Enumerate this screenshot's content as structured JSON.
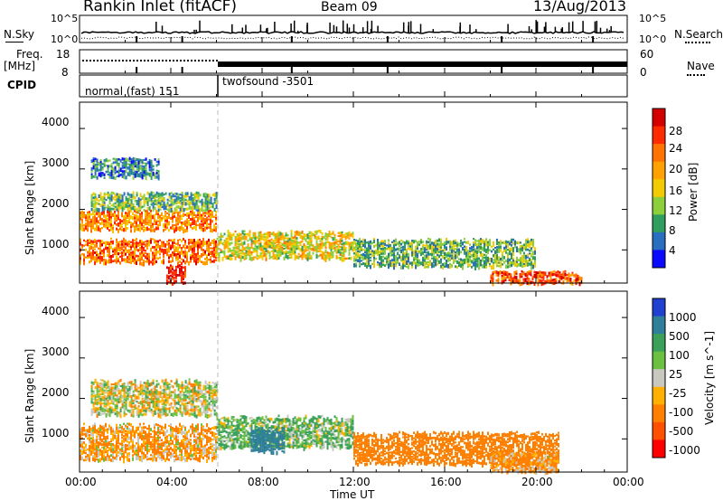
{
  "header": {
    "title": "Rankin Inlet (fitACF)",
    "beam": "Beam 09",
    "date": "13/Aug/2013"
  },
  "status_panels": {
    "nsky_label": "N.Sky",
    "nsearch_label": "N.Search",
    "nsky_ticks": [
      "10^5",
      "10^0"
    ],
    "nsearch_ticks": [
      "10^5",
      "10^0"
    ],
    "freq_label_line1": "Freq.",
    "freq_label_line2": "[MHz]",
    "freq_ticks": [
      "18",
      "8"
    ],
    "nave_label": "Nave",
    "nave_ticks": [
      "60",
      "0"
    ],
    "cpid_label": "CPID",
    "cpid_segments": [
      {
        "name": "normal (fast) 151",
        "start_hour": 0,
        "end_hour": 6
      },
      {
        "name": "twofsound -3501",
        "start_hour": 6,
        "end_hour": 24
      }
    ]
  },
  "axes": {
    "ylabel": "Slant Range [km]",
    "yticks": [
      "4000",
      "3000",
      "2000",
      "1000"
    ],
    "xticks": [
      "00:00",
      "04:00",
      "08:00",
      "12:00",
      "16:00",
      "20:00",
      "00:00"
    ],
    "xlabel": "Time UT"
  },
  "colorbars": {
    "power_label": "Power [dB]",
    "power_ticks": [
      "28",
      "24",
      "20",
      "16",
      "12",
      "8",
      "4"
    ],
    "power_colors": [
      "#d40000",
      "#ff2a00",
      "#ff7300",
      "#ffa100",
      "#f2cb00",
      "#8ccf3a",
      "#2f9e5e",
      "#2a6fbf",
      "#0a0aff"
    ],
    "velocity_label": "Velocity [m s^-1]",
    "velocity_ticks": [
      "1000",
      "500",
      "100",
      "25",
      "-25",
      "-100",
      "-500",
      "-1000"
    ],
    "velocity_colors": [
      "#2040d0",
      "#2f7f9a",
      "#3aa05a",
      "#6cc040",
      "#c8c8c0",
      "#ffb000",
      "#ff8000",
      "#ff5000",
      "#ff0000"
    ]
  },
  "chart_data": [
    {
      "type": "heatmap",
      "title": "Power",
      "xlabel": "Time UT",
      "ylabel": "Slant Range [km]",
      "xlim": [
        0,
        24
      ],
      "ylim": [
        180,
        4650
      ],
      "colorbar": "Power [dB]",
      "colorbar_range": [
        0,
        32
      ],
      "regions": [
        {
          "t0": 0.0,
          "t1": 6.0,
          "r0": 1500,
          "r1": 2000,
          "value": 22
        },
        {
          "t0": 0.5,
          "t1": 6.0,
          "r0": 2000,
          "r1": 2450,
          "value": 10
        },
        {
          "t0": 0.0,
          "t1": 6.0,
          "r0": 700,
          "r1": 1300,
          "value": 24
        },
        {
          "t0": 3.8,
          "t1": 4.6,
          "r0": 200,
          "r1": 650,
          "value": 30
        },
        {
          "t0": 6.0,
          "t1": 12.0,
          "r0": 800,
          "r1": 1500,
          "value": 16
        },
        {
          "t0": 12.0,
          "t1": 20.0,
          "r0": 600,
          "r1": 1300,
          "value": 10
        },
        {
          "t0": 18.0,
          "t1": 22.0,
          "r0": 200,
          "r1": 500,
          "value": 26
        },
        {
          "t0": 0.5,
          "t1": 3.5,
          "r0": 2800,
          "r1": 3300,
          "value": 6
        }
      ]
    },
    {
      "type": "heatmap",
      "title": "Velocity",
      "xlabel": "Time UT",
      "ylabel": "Slant Range [km]",
      "xlim": [
        0,
        24
      ],
      "ylim": [
        180,
        4650
      ],
      "colorbar": "Velocity [m s^-1]",
      "colorbar_range": [
        -1000,
        1000
      ],
      "regions": [
        {
          "t0": 0.5,
          "t1": 6.0,
          "r0": 1600,
          "r1": 2500,
          "value": 0
        },
        {
          "t0": 0.0,
          "t1": 6.0,
          "r0": 500,
          "r1": 1400,
          "value": -100
        },
        {
          "t0": 6.0,
          "t1": 12.0,
          "r0": 800,
          "r1": 1600,
          "value": 100
        },
        {
          "t0": 7.5,
          "t1": 9.0,
          "r0": 700,
          "r1": 1300,
          "value": 700
        },
        {
          "t0": 12.0,
          "t1": 21.0,
          "r0": 400,
          "r1": 1200,
          "value": -300
        },
        {
          "t0": 18.0,
          "t1": 21.0,
          "r0": 200,
          "r1": 700,
          "value": -120
        }
      ]
    }
  ]
}
